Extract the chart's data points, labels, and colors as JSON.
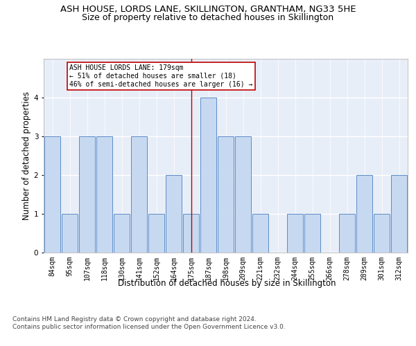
{
  "title_line1": "ASH HOUSE, LORDS LANE, SKILLINGTON, GRANTHAM, NG33 5HE",
  "title_line2": "Size of property relative to detached houses in Skillington",
  "xlabel": "Distribution of detached houses by size in Skillington",
  "ylabel": "Number of detached properties",
  "categories": [
    "84sqm",
    "95sqm",
    "107sqm",
    "118sqm",
    "130sqm",
    "141sqm",
    "152sqm",
    "164sqm",
    "175sqm",
    "187sqm",
    "198sqm",
    "209sqm",
    "221sqm",
    "232sqm",
    "244sqm",
    "255sqm",
    "266sqm",
    "278sqm",
    "289sqm",
    "301sqm",
    "312sqm"
  ],
  "values": [
    3,
    1,
    3,
    3,
    1,
    3,
    1,
    2,
    1,
    4,
    3,
    3,
    1,
    0,
    1,
    1,
    0,
    1,
    2,
    1,
    2
  ],
  "bar_color": "#c7d9f0",
  "bar_edge_color": "#5b8cc8",
  "highlight_index": 8,
  "highlight_color": "#c00000",
  "annotation_text": "ASH HOUSE LORDS LANE: 179sqm\n← 51% of detached houses are smaller (18)\n46% of semi-detached houses are larger (16) →",
  "annotation_box_color": "#ffffff",
  "annotation_box_edge": "#c00000",
  "ylim": [
    0,
    5
  ],
  "yticks": [
    0,
    1,
    2,
    3,
    4
  ],
  "footer_text": "Contains HM Land Registry data © Crown copyright and database right 2024.\nContains public sector information licensed under the Open Government Licence v3.0.",
  "bg_color": "#e8eef8",
  "grid_color": "#ffffff",
  "title_fontsize": 9.5,
  "subtitle_fontsize": 9,
  "axis_label_fontsize": 8.5,
  "tick_fontsize": 7,
  "footer_fontsize": 6.5
}
